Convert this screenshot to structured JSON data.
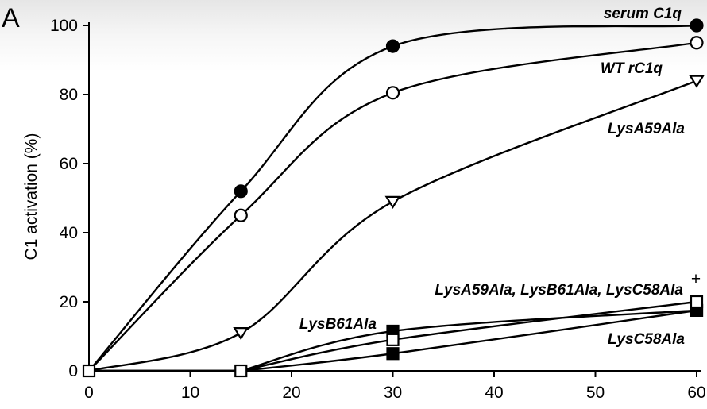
{
  "panel_label": "A",
  "chart_data": {
    "type": "line",
    "title": "",
    "xlabel": "",
    "ylabel": "C1 activation (%)",
    "xlim": [
      0,
      60
    ],
    "ylim": [
      0,
      100
    ],
    "xticks": [
      "0",
      "10",
      "20",
      "30",
      "40",
      "50",
      "60"
    ],
    "yticks": [
      "0",
      "20",
      "40",
      "60",
      "80",
      "100"
    ],
    "grid": false,
    "series": [
      {
        "name": "serum C1q",
        "marker": "filled-circle",
        "x": [
          0,
          15,
          30,
          60
        ],
        "y": [
          0,
          52,
          94,
          100
        ]
      },
      {
        "name": "WT rC1q",
        "marker": "open-circle",
        "x": [
          0,
          15,
          30,
          60
        ],
        "y": [
          0,
          45,
          80.5,
          95
        ]
      },
      {
        "name": "LysA59Ala",
        "marker": "open-triangle-down",
        "x": [
          0,
          15,
          30,
          60
        ],
        "y": [
          0,
          11,
          49,
          84
        ]
      },
      {
        "name": "LysB61Ala",
        "marker": "filled-square",
        "x": [
          0,
          15,
          30,
          60
        ],
        "y": [
          0,
          0,
          11.5,
          17.5
        ]
      },
      {
        "name": "LysC58Ala",
        "marker": "filled-square",
        "x": [
          0,
          15,
          30,
          60
        ],
        "y": [
          0,
          0,
          5,
          17.5
        ]
      },
      {
        "name": "LysA59Ala, LysB61Ala, LysC58Ala",
        "marker": "open-square",
        "x": [
          0,
          15,
          30,
          60
        ],
        "y": [
          0,
          0,
          9,
          20
        ]
      }
    ],
    "annotations": [
      {
        "text": "+",
        "near_series": "LysA59Ala, LysB61Ala, LysC58Ala"
      }
    ]
  }
}
